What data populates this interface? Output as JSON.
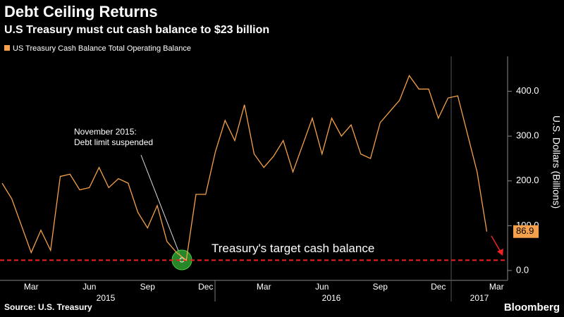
{
  "chart_data": {
    "type": "line",
    "title": "Debt Ceiling Returns",
    "subtitle": "U.S Treasury must cut cash balance to $23 billion",
    "source": "Source: U.S. Treasury",
    "brand": "Bloomberg",
    "y_axis_label": "U.S. Dollars (Billions)",
    "categories": [
      null,
      null,
      null,
      "Mar",
      null,
      null,
      null,
      null,
      null,
      "Jun",
      null,
      null,
      null,
      null,
      null,
      "Sep",
      null,
      null,
      null,
      null,
      null,
      "Dec",
      null,
      null,
      null,
      null,
      null,
      "Mar",
      null,
      null,
      null,
      null,
      null,
      "Jun",
      null,
      null,
      null,
      null,
      null,
      "Sep",
      null,
      null,
      null,
      null,
      null,
      "Dec",
      null,
      null,
      null,
      null,
      null,
      "Mar"
    ],
    "x_group_labels": [
      "2015",
      "2016",
      "2017"
    ],
    "series": [
      {
        "name": "US Treasury Cash Balance Total Operating Balance",
        "color": "#f5a04a",
        "values": [
          195,
          160,
          100,
          40,
          90,
          45,
          210,
          215,
          180,
          185,
          230,
          185,
          205,
          195,
          130,
          95,
          145,
          65,
          40,
          23,
          170,
          170,
          265,
          335,
          290,
          370,
          260,
          230,
          255,
          290,
          220,
          280,
          340,
          260,
          340,
          300,
          325,
          260,
          250,
          330,
          355,
          380,
          435,
          405,
          405,
          340,
          385,
          390,
          305,
          220,
          86.9,
          null
        ]
      }
    ],
    "ylim": [
      -22,
      478
    ],
    "yticks": [
      {
        "value": 0,
        "label": "0.0"
      },
      {
        "value": 100,
        "label": "100.0"
      },
      {
        "value": 200,
        "label": "200.0"
      },
      {
        "value": 300,
        "label": "300.0"
      },
      {
        "value": 400,
        "label": "400.0"
      }
    ],
    "target": 23,
    "target_label": "Treasury's target cash balance",
    "annotation": [
      "November 2015:",
      "Debt limit suspended"
    ]
  }
}
